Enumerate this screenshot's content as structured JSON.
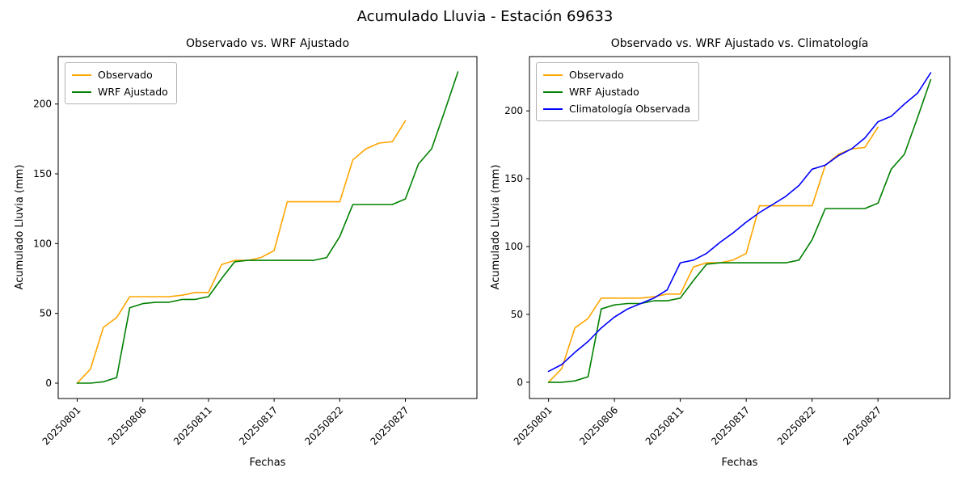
{
  "figure": {
    "title": "Acumulado Lluvia - Estación 69633"
  },
  "chart_data": [
    {
      "type": "line",
      "title": "Observado vs. WRF Ajustado",
      "xlabel": "Fechas",
      "ylabel": "Acumulado Lluvia (mm)",
      "ylim": [
        -11,
        234
      ],
      "yticks": [
        0,
        50,
        100,
        150,
        200
      ],
      "xtick_labels": [
        "20250801",
        "20250806",
        "20250811",
        "20250817",
        "20250822",
        "20250827"
      ],
      "xtick_indices": [
        0,
        5,
        10,
        15,
        20,
        25
      ],
      "legend_position": "upper left",
      "grid": false,
      "categories": [
        "20250801",
        "20250802",
        "20250803",
        "20250804",
        "20250805",
        "20250806",
        "20250807",
        "20250808",
        "20250809",
        "20250810",
        "20250811",
        "20250813",
        "20250814",
        "20250815",
        "20250816",
        "20250817",
        "20250818",
        "20250819",
        "20250820",
        "20250821",
        "20250822",
        "20250823",
        "20250824",
        "20250825",
        "20250826",
        "20250827",
        "20250828",
        "20250829",
        "20250830",
        "20250831"
      ],
      "series": [
        {
          "name": "Observado",
          "color": "#ffa500",
          "values": [
            0,
            10,
            40,
            47,
            62,
            62,
            62,
            62,
            63,
            65,
            65,
            85,
            88,
            88,
            90,
            95,
            130,
            130,
            130,
            130,
            130,
            160,
            168,
            172,
            173,
            188,
            null,
            null,
            null,
            null
          ]
        },
        {
          "name": "WRF Ajustado",
          "color": "#008000",
          "values": [
            0,
            0,
            1,
            4,
            54,
            57,
            58,
            58,
            60,
            60,
            62,
            75,
            87,
            88,
            88,
            88,
            88,
            88,
            88,
            90,
            105,
            128,
            128,
            128,
            128,
            132,
            157,
            168,
            195,
            223
          ]
        }
      ]
    },
    {
      "type": "line",
      "title": "Observado vs. WRF Ajustado vs. Climatología",
      "xlabel": "Fechas",
      "ylabel": "Acumulado Lluvia (mm)",
      "ylim": [
        -12,
        240
      ],
      "yticks": [
        0,
        50,
        100,
        150,
        200
      ],
      "xtick_labels": [
        "20250801",
        "20250806",
        "20250811",
        "20250817",
        "20250822",
        "20250827"
      ],
      "xtick_indices": [
        0,
        5,
        10,
        15,
        20,
        25
      ],
      "legend_position": "upper left",
      "grid": false,
      "categories": [
        "20250801",
        "20250802",
        "20250803",
        "20250804",
        "20250805",
        "20250806",
        "20250807",
        "20250808",
        "20250809",
        "20250810",
        "20250811",
        "20250813",
        "20250814",
        "20250815",
        "20250816",
        "20250817",
        "20250818",
        "20250819",
        "20250820",
        "20250821",
        "20250822",
        "20250823",
        "20250824",
        "20250825",
        "20250826",
        "20250827",
        "20250828",
        "20250829",
        "20250830",
        "20250831"
      ],
      "series": [
        {
          "name": "Observado",
          "color": "#ffa500",
          "values": [
            0,
            10,
            40,
            47,
            62,
            62,
            62,
            62,
            63,
            65,
            65,
            85,
            88,
            88,
            90,
            95,
            130,
            130,
            130,
            130,
            130,
            160,
            168,
            172,
            173,
            188,
            null,
            null,
            null,
            null
          ]
        },
        {
          "name": "WRF Ajustado",
          "color": "#008000",
          "values": [
            0,
            0,
            1,
            4,
            54,
            57,
            58,
            58,
            60,
            60,
            62,
            75,
            87,
            88,
            88,
            88,
            88,
            88,
            88,
            90,
            105,
            128,
            128,
            128,
            128,
            132,
            157,
            168,
            195,
            223
          ]
        },
        {
          "name": "Climatología Observada",
          "color": "#0000ff",
          "values": [
            8,
            13,
            22,
            30,
            40,
            48,
            54,
            58,
            62,
            68,
            88,
            90,
            95,
            103,
            110,
            118,
            125,
            131,
            137,
            145,
            157,
            160,
            167,
            172,
            180,
            192,
            196,
            205,
            213,
            228
          ]
        }
      ]
    }
  ]
}
